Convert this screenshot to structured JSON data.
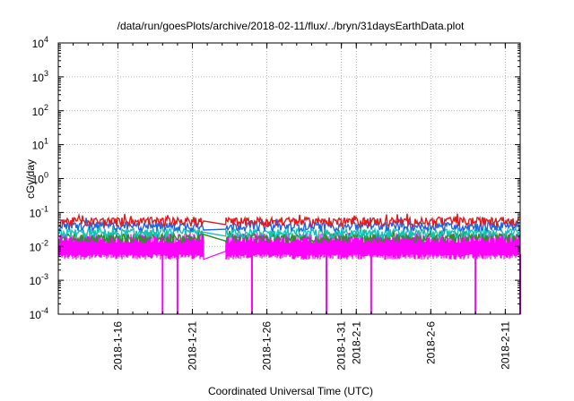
{
  "chart_data": {
    "type": "line",
    "title": "/data/run/goesPlots/archive/2018-02-11/flux/../bryn/31daysEarthData.plot",
    "xlabel": "Coordinated Universal Time (UTC)",
    "ylabel": "cGy/day",
    "yscale": "log",
    "ylim": [
      0.0001,
      10000
    ],
    "xlim": [
      "2018-01-12",
      "2018-02-12"
    ],
    "grid": true,
    "legend": "none",
    "y_ticks": [
      {
        "value": 0.0001,
        "base": "10",
        "exp": "-4"
      },
      {
        "value": 0.001,
        "base": "10",
        "exp": "-3"
      },
      {
        "value": 0.01,
        "base": "10",
        "exp": "-2"
      },
      {
        "value": 0.1,
        "base": "10",
        "exp": "-1"
      },
      {
        "value": 1,
        "base": "10",
        "exp": "0"
      },
      {
        "value": 10,
        "base": "10",
        "exp": "1"
      },
      {
        "value": 100,
        "base": "10",
        "exp": "2"
      },
      {
        "value": 1000,
        "base": "10",
        "exp": "3"
      },
      {
        "value": 10000,
        "base": "10",
        "exp": "4"
      }
    ],
    "x_ticks": [
      {
        "date": "2018-01-16",
        "label": "2018-1-16"
      },
      {
        "date": "2018-01-21",
        "label": "2018-1-21"
      },
      {
        "date": "2018-01-26",
        "label": "2018-1-26"
      },
      {
        "date": "2018-01-31",
        "label": "2018-1-31"
      },
      {
        "date": "2018-02-01",
        "label": "2018-2-1"
      },
      {
        "date": "2018-02-06",
        "label": "2018-2-6"
      },
      {
        "date": "2018-02-11",
        "label": "2018-2-11"
      }
    ],
    "gap": [
      "2018-01-22",
      "2018-01-23"
    ],
    "series": [
      {
        "color": "#e41a1c",
        "base": 0.055
      },
      {
        "color": "#2166e0",
        "base": 0.04
      },
      {
        "color": "#12c4b4",
        "base": 0.025
      },
      {
        "color": "#2e8b2e",
        "base": 0.018
      },
      {
        "color": "#ff00ff",
        "base": 0.009
      }
    ],
    "dropouts": [
      "2018-01-19",
      "2018-01-20",
      "2018-01-25",
      "2018-01-30",
      "2018-02-02",
      "2018-02-09",
      "2018-02-12"
    ]
  }
}
